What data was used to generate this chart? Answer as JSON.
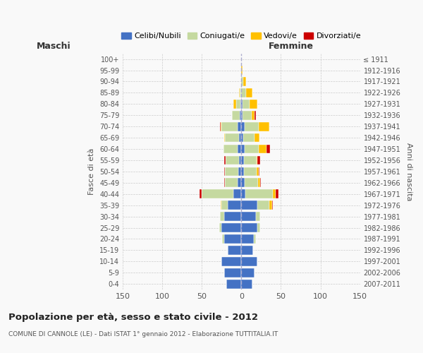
{
  "age_groups": [
    "0-4",
    "5-9",
    "10-14",
    "15-19",
    "20-24",
    "25-29",
    "30-34",
    "35-39",
    "40-44",
    "45-49",
    "50-54",
    "55-59",
    "60-64",
    "65-69",
    "70-74",
    "75-79",
    "80-84",
    "85-89",
    "90-94",
    "95-99",
    "100+"
  ],
  "birth_years": [
    "2007-2011",
    "2002-2006",
    "1997-2001",
    "1992-1996",
    "1987-1991",
    "1982-1986",
    "1977-1981",
    "1972-1976",
    "1967-1971",
    "1962-1966",
    "1957-1961",
    "1952-1956",
    "1947-1951",
    "1942-1946",
    "1937-1941",
    "1932-1936",
    "1927-1931",
    "1922-1926",
    "1917-1921",
    "1912-1916",
    "≤ 1911"
  ],
  "males": {
    "celibe": [
      19,
      22,
      25,
      17,
      22,
      25,
      22,
      17,
      10,
      5,
      4,
      3,
      5,
      3,
      5,
      2,
      1,
      0,
      0,
      0,
      0
    ],
    "coniugato": [
      0,
      0,
      0,
      0,
      2,
      3,
      5,
      8,
      40,
      16,
      17,
      17,
      18,
      18,
      20,
      10,
      6,
      2,
      0,
      0,
      0
    ],
    "vedovo": [
      0,
      0,
      0,
      0,
      0,
      0,
      0,
      1,
      0,
      0,
      0,
      0,
      0,
      1,
      1,
      0,
      3,
      1,
      0,
      0,
      0
    ],
    "divorziato": [
      0,
      0,
      0,
      0,
      0,
      0,
      0,
      0,
      3,
      1,
      1,
      2,
      0,
      0,
      1,
      0,
      0,
      0,
      0,
      0,
      0
    ]
  },
  "females": {
    "nubile": [
      14,
      17,
      20,
      15,
      16,
      20,
      18,
      20,
      5,
      4,
      3,
      3,
      4,
      2,
      4,
      1,
      1,
      0,
      0,
      0,
      0
    ],
    "coniugata": [
      0,
      0,
      0,
      0,
      2,
      4,
      6,
      15,
      35,
      17,
      16,
      16,
      18,
      15,
      18,
      12,
      9,
      6,
      2,
      0,
      0
    ],
    "vedova": [
      0,
      0,
      0,
      0,
      0,
      0,
      0,
      4,
      3,
      3,
      3,
      1,
      10,
      6,
      13,
      4,
      10,
      8,
      4,
      1,
      0
    ],
    "divorziata": [
      0,
      0,
      0,
      0,
      0,
      0,
      0,
      1,
      4,
      1,
      1,
      4,
      4,
      0,
      0,
      1,
      0,
      0,
      0,
      0,
      0
    ]
  },
  "colors": {
    "celibe": "#4472C4",
    "coniugato": "#c5d9a0",
    "vedovo": "#ffc000",
    "divorziato": "#cc0000"
  },
  "xlim": 150,
  "title": "Popolazione per età, sesso e stato civile - 2012",
  "subtitle": "COMUNE DI CANNOLE (LE) - Dati ISTAT 1° gennaio 2012 - Elaborazione TUTTITALIA.IT",
  "ylabel_left": "Fasce di età",
  "ylabel_right": "Anni di nascita",
  "xlabel_maschi": "Maschi",
  "xlabel_femmine": "Femmine",
  "bg_color": "#f9f9f9",
  "grid_color": "#cccccc",
  "bar_height": 0.8
}
